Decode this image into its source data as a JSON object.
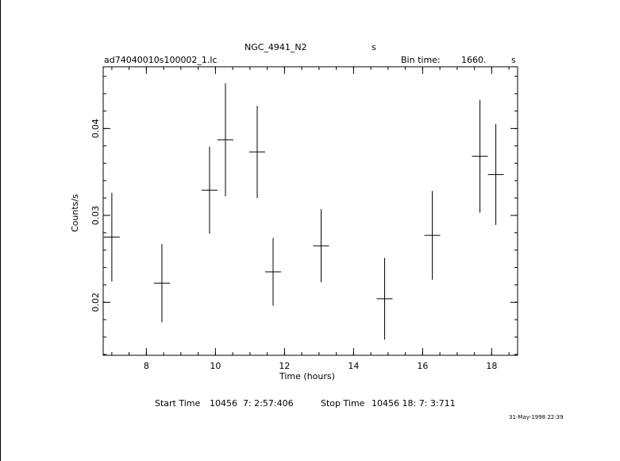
{
  "header": {
    "object_name": "NGC_4941_N2",
    "object_unit": "s",
    "file_name": "ad74040010s100002_1.lc",
    "bin_time_label": "Bin time:",
    "bin_time_value": "1660.",
    "bin_time_unit": "s"
  },
  "footer": {
    "start_label": "Start Time",
    "start_value": "10456  7: 2:57:406",
    "stop_label": "Stop Time",
    "stop_value": "10456 18: 7: 3:711",
    "plot_date": "31-May-1998 22:39"
  },
  "chart_data": {
    "type": "scatter",
    "xlabel": "Time (hours)",
    "ylabel": "Counts/s",
    "xlim": [
      6.75,
      18.75
    ],
    "ylim": [
      0.0139,
      0.0471
    ],
    "xticks": [
      8,
      10,
      12,
      14,
      16,
      18
    ],
    "yticks": [
      0.02,
      0.03,
      0.04
    ],
    "x_minor_step": 0.5,
    "y_minor_step": 0.002,
    "grid": false,
    "points": [
      {
        "x": 7.0,
        "y": 0.0275,
        "xerr": 0.23,
        "yerr": 0.0051
      },
      {
        "x": 8.45,
        "y": 0.0222,
        "xerr": 0.23,
        "yerr": 0.0045
      },
      {
        "x": 9.83,
        "y": 0.0329,
        "xerr": 0.23,
        "yerr": 0.005
      },
      {
        "x": 10.29,
        "y": 0.0387,
        "xerr": 0.23,
        "yerr": 0.0065
      },
      {
        "x": 11.21,
        "y": 0.0373,
        "xerr": 0.23,
        "yerr": 0.0053
      },
      {
        "x": 11.67,
        "y": 0.0235,
        "xerr": 0.23,
        "yerr": 0.0039
      },
      {
        "x": 13.06,
        "y": 0.0265,
        "xerr": 0.23,
        "yerr": 0.0042
      },
      {
        "x": 14.9,
        "y": 0.0204,
        "xerr": 0.23,
        "yerr": 0.0047
      },
      {
        "x": 16.28,
        "y": 0.0277,
        "xerr": 0.23,
        "yerr": 0.0051
      },
      {
        "x": 17.66,
        "y": 0.0368,
        "xerr": 0.23,
        "yerr": 0.0065
      },
      {
        "x": 18.12,
        "y": 0.0347,
        "xerr": 0.23,
        "yerr": 0.0058
      }
    ]
  }
}
